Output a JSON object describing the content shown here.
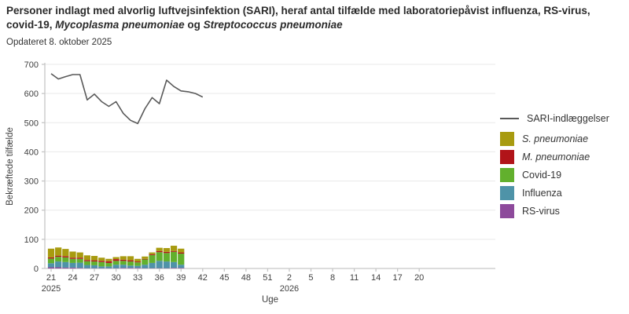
{
  "header": {
    "title_segments": [
      {
        "text": "Personer indlagt med alvorlig luftvejsinfektion (SARI), heraf antal tilfælde med laboratoriepåvist influenza, RS-virus, covid-19, ",
        "italic": false
      },
      {
        "text": "Mycoplasma pneumoniae",
        "italic": true
      },
      {
        "text": " og ",
        "italic": false
      },
      {
        "text": "Streptococcus pneumoniae",
        "italic": true
      }
    ],
    "subtitle": "Opdateret 8. oktober 2025"
  },
  "legend": {
    "items": [
      {
        "label": "SARI-indlæggelser",
        "swatch": "line",
        "color": "#595959",
        "italic": false
      },
      {
        "label": "S. pneumoniae",
        "swatch": "square",
        "color": "#a89b10",
        "italic": true
      },
      {
        "label": "M. pneumoniae",
        "swatch": "square",
        "color": "#b11419",
        "italic": true
      },
      {
        "label": "Covid-19",
        "swatch": "square",
        "color": "#62b02d",
        "italic": false
      },
      {
        "label": "Influenza",
        "swatch": "square",
        "color": "#4e93a8",
        "italic": false
      },
      {
        "label": "RS-virus",
        "swatch": "square",
        "color": "#8d4a9b",
        "italic": false
      }
    ]
  },
  "chart_data": {
    "type": "bar",
    "stacked": true,
    "title": "Personer indlagt med alvorlig luftvejsinfektion (SARI), heraf antal tilfælde med laboratoriepåvist influenza, RS-virus, covid-19, Mycoplasma pneumoniae og Streptococcus pneumoniae",
    "xlabel": "Uge",
    "ylabel": "Bekræftede tilfælde",
    "ylim": [
      0,
      700
    ],
    "yticks": [
      0,
      100,
      200,
      300,
      400,
      500,
      600,
      700
    ],
    "grid": true,
    "legend_position": "right",
    "x_first_week": 21,
    "x_domain_weeks": 52,
    "x_tick_every": 3,
    "x_tick_labels": [
      "21",
      "24",
      "27",
      "30",
      "33",
      "36",
      "39",
      "42",
      "45",
      "48",
      "51",
      "2",
      "5",
      "8",
      "11",
      "14",
      "17",
      "20"
    ],
    "year_labels": [
      {
        "text": "2025",
        "tick_index": 0
      },
      {
        "text": "2026",
        "tick_index": 11
      }
    ],
    "bar_weeks": [
      "21",
      "22",
      "23",
      "24",
      "25",
      "26",
      "27",
      "28",
      "29",
      "30",
      "31",
      "32",
      "33",
      "34",
      "35",
      "36",
      "37",
      "38",
      "39"
    ],
    "series": [
      {
        "name": "RS-virus",
        "color": "#8d4a9b",
        "values": [
          4,
          4,
          3,
          3,
          2,
          1,
          1,
          1,
          1,
          1,
          2,
          2,
          2,
          1,
          1,
          1,
          1,
          2,
          2
        ]
      },
      {
        "name": "Influenza",
        "color": "#4e93a8",
        "values": [
          14,
          20,
          19,
          16,
          18,
          11,
          10,
          6,
          6,
          12,
          11,
          8,
          7,
          12,
          18,
          25,
          23,
          20,
          11
        ]
      },
      {
        "name": "Covid-19",
        "color": "#62b02d",
        "values": [
          16,
          16,
          16,
          14,
          13,
          13,
          13,
          15,
          12,
          13,
          13,
          14,
          12,
          18,
          27,
          30,
          29,
          35,
          38
        ]
      },
      {
        "name": "M. pneumoniae",
        "color": "#b11419",
        "values": [
          4,
          4,
          4,
          4,
          4,
          4,
          4,
          4,
          6,
          6,
          4,
          4,
          3,
          2,
          3,
          4,
          4,
          3,
          4
        ]
      },
      {
        "name": "S. pneumoniae",
        "color": "#a89b10",
        "values": [
          30,
          28,
          25,
          21,
          18,
          16,
          15,
          11,
          8,
          7,
          12,
          14,
          9,
          8,
          6,
          11,
          13,
          18,
          13
        ]
      }
    ],
    "line_series": {
      "name": "SARI-indlæggelser",
      "color": "#595959",
      "weeks": [
        "21",
        "22",
        "23",
        "24",
        "25",
        "26",
        "27",
        "28",
        "29",
        "30",
        "31",
        "32",
        "33",
        "34",
        "35",
        "36",
        "37",
        "38",
        "39",
        "40",
        "41",
        "42"
      ],
      "values": [
        668,
        650,
        658,
        665,
        665,
        578,
        598,
        572,
        556,
        572,
        532,
        508,
        497,
        548,
        586,
        565,
        646,
        624,
        609,
        606,
        600,
        588
      ]
    }
  }
}
